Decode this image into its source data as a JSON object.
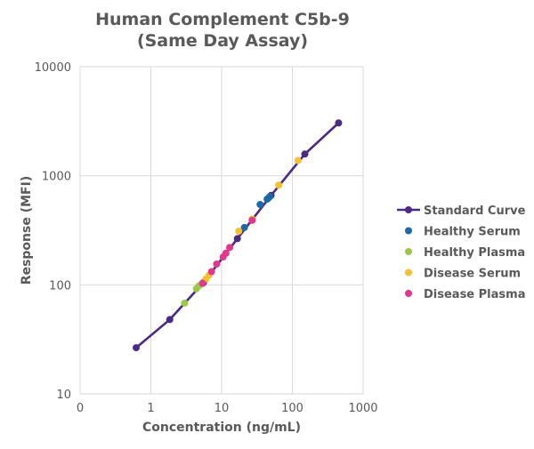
{
  "chart_data": {
    "type": "scatter",
    "title": "Human Complement C5b-9",
    "subtitle": "(Same Day Assay)",
    "xlabel": "Concentration (ng/mL)",
    "ylabel": "Response (MFI)",
    "x_scale": "log",
    "y_scale": "log",
    "xlim": [
      0.1,
      1000
    ],
    "ylim": [
      10,
      10000
    ],
    "x_tick_labels": [
      "0",
      "1",
      "10",
      "100",
      "1000"
    ],
    "y_tick_labels": [
      "10",
      "100",
      "1000",
      "10000"
    ],
    "grid": true,
    "legend_position": "right",
    "series": [
      {
        "name": "Standard Curve",
        "color": "#4b2a86",
        "line": true,
        "x": [
          0.62,
          1.85,
          5.55,
          16.7,
          50,
          150,
          450
        ],
        "y": [
          26.5,
          48,
          105,
          265,
          660,
          1580,
          3050
        ]
      },
      {
        "name": "Healthy Serum",
        "color": "#1b6aa5",
        "line": false,
        "x": [
          21,
          35,
          44,
          46,
          48
        ],
        "y": [
          335,
          545,
          610,
          625,
          645
        ]
      },
      {
        "name": "Healthy Plasma",
        "color": "#9bc84a",
        "line": false,
        "x": [
          3.0,
          4.4,
          4.8,
          5.3
        ],
        "y": [
          68,
          92,
          98,
          103
        ]
      },
      {
        "name": "Disease Serum",
        "color": "#f5c130",
        "line": false,
        "x": [
          6.0,
          6.6,
          17.5,
          27,
          64,
          120
        ],
        "y": [
          113,
          122,
          310,
          400,
          820,
          1380
        ]
      },
      {
        "name": "Disease Plasma",
        "color": "#e0388a",
        "line": false,
        "x": [
          5.4,
          7.2,
          8.5,
          10.5,
          11.5,
          13,
          27
        ],
        "y": [
          103,
          132,
          155,
          180,
          195,
          220,
          390
        ]
      }
    ]
  }
}
